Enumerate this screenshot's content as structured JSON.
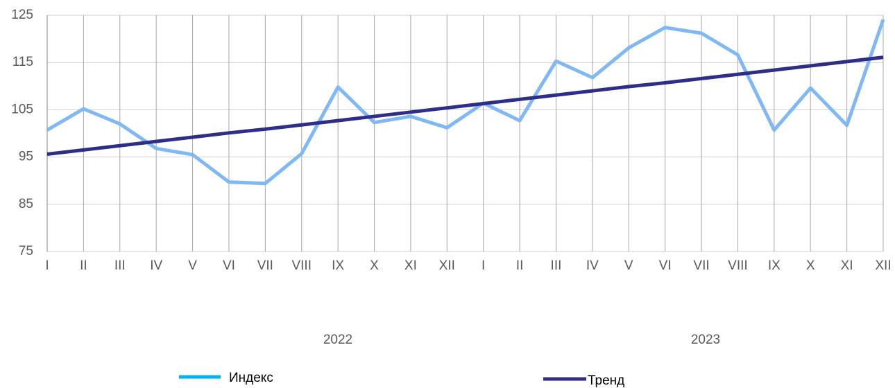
{
  "chart_data": {
    "type": "line",
    "categories": [
      "I",
      "II",
      "III",
      "IV",
      "V",
      "VI",
      "VII",
      "VIII",
      "IX",
      "X",
      "XI",
      "XII",
      "I",
      "II",
      "III",
      "IV",
      "V",
      "VI",
      "VII",
      "VIII",
      "IX",
      "X",
      "XI",
      "XII"
    ],
    "groups": [
      {
        "name": "2022",
        "count": 12
      },
      {
        "name": "2023",
        "count": 12
      }
    ],
    "series": [
      {
        "name": "Индекс",
        "color": "#7fb8f5",
        "legend_color": "#00b0f0",
        "values": [
          100.7,
          105.2,
          102.0,
          96.8,
          95.5,
          89.7,
          89.4,
          95.7,
          109.8,
          102.3,
          103.6,
          101.2,
          106.4,
          102.7,
          115.3,
          111.8,
          118.1,
          122.4,
          121.2,
          116.6,
          100.7,
          109.6,
          101.7,
          124.1
        ]
      },
      {
        "name": "Тренд",
        "color": "#2e2e8a",
        "legend_color": "#2e2e8a",
        "values": [
          95.6,
          96.5,
          97.4,
          98.3,
          99.2,
          100.1,
          100.9,
          101.8,
          102.7,
          103.6,
          104.5,
          105.4,
          106.3,
          107.2,
          108.1,
          109.0,
          109.9,
          110.7,
          111.6,
          112.5,
          113.4,
          114.3,
          115.2,
          116.1
        ]
      }
    ],
    "ylim": [
      75,
      125
    ],
    "yticks": [
      75,
      85,
      95,
      105,
      115,
      125
    ],
    "grid": true
  }
}
